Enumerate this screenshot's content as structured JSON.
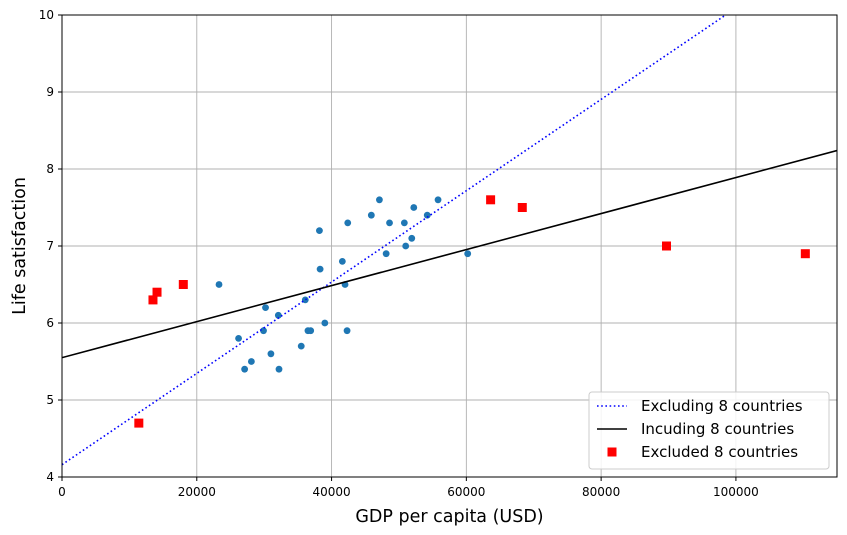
{
  "chart_data": {
    "type": "scatter",
    "xlabel": "GDP per capita (USD)",
    "ylabel": "Life satisfaction",
    "xlim": [
      0,
      115000
    ],
    "ylim": [
      4,
      10
    ],
    "xticks": [
      0,
      20000,
      40000,
      60000,
      80000,
      100000
    ],
    "yticks": [
      4,
      5,
      6,
      7,
      8,
      9,
      10
    ],
    "grid": true,
    "legend_position": "lower-right",
    "series": [
      {
        "name": "",
        "kind": "points",
        "marker": "circle",
        "color": "#1f77b4",
        "points": [
          [
            23300,
            6.5
          ],
          [
            26200,
            5.8
          ],
          [
            27100,
            5.4
          ],
          [
            28100,
            5.5
          ],
          [
            29900,
            5.9
          ],
          [
            30200,
            6.2
          ],
          [
            31000,
            5.6
          ],
          [
            32100,
            6.1
          ],
          [
            32200,
            5.4
          ],
          [
            35500,
            5.7
          ],
          [
            36100,
            6.3
          ],
          [
            36500,
            5.9
          ],
          [
            36900,
            5.9
          ],
          [
            38200,
            7.2
          ],
          [
            38300,
            6.7
          ],
          [
            39000,
            6.0
          ],
          [
            41600,
            6.8
          ],
          [
            42000,
            6.5
          ],
          [
            42300,
            5.9
          ],
          [
            42400,
            7.3
          ],
          [
            45900,
            7.4
          ],
          [
            47100,
            7.6
          ],
          [
            48100,
            6.9
          ],
          [
            48600,
            7.3
          ],
          [
            50800,
            7.3
          ],
          [
            51000,
            7.0
          ],
          [
            51900,
            7.1
          ],
          [
            52200,
            7.5
          ],
          [
            54200,
            7.4
          ],
          [
            55800,
            7.6
          ],
          [
            60200,
            6.9
          ]
        ]
      },
      {
        "name": "Excluding 8 countries",
        "kind": "line",
        "style": "dotted",
        "color": "#0000ff",
        "points": [
          [
            0,
            4.16
          ],
          [
            115000,
            10.98
          ]
        ]
      },
      {
        "name": "Incuding 8 countries",
        "kind": "line",
        "style": "solid",
        "color": "#000000",
        "points": [
          [
            0,
            5.55
          ],
          [
            115000,
            8.24
          ]
        ]
      },
      {
        "name": "Excluded 8 countries",
        "kind": "points",
        "marker": "square",
        "color": "#ff0000",
        "points": [
          [
            11400,
            4.7
          ],
          [
            13500,
            6.3
          ],
          [
            14100,
            6.4
          ],
          [
            18000,
            6.5
          ],
          [
            63600,
            7.6
          ],
          [
            68300,
            7.5
          ],
          [
            89700,
            7.0
          ],
          [
            110300,
            6.9
          ]
        ]
      }
    ]
  }
}
